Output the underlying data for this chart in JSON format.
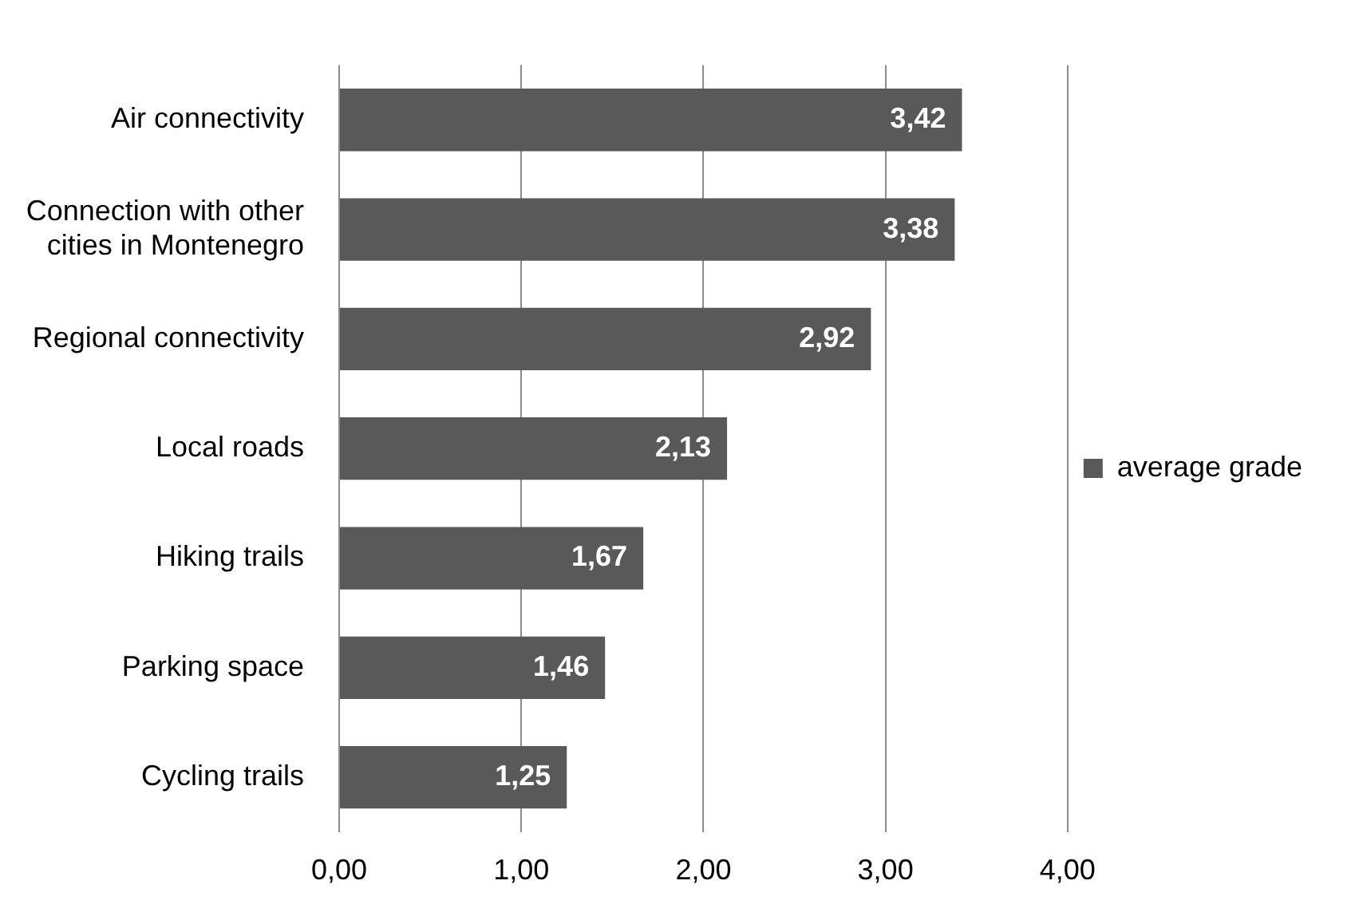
{
  "chart_data": {
    "type": "bar",
    "orientation": "horizontal",
    "categories": [
      "Air connectivity",
      "Connection with other cities in Montenegro",
      "Regional connectivity",
      "Local roads",
      "Hiking trails",
      "Parking space",
      "Cycling trails"
    ],
    "series": [
      {
        "name": "average grade",
        "color": "#595959",
        "values": [
          3.42,
          3.38,
          2.92,
          2.13,
          1.67,
          1.46,
          1.25
        ],
        "value_labels": [
          "3,42",
          "3,38",
          "2,92",
          "2,13",
          "1,67",
          "1,46",
          "1,25"
        ]
      }
    ],
    "xlim": [
      0,
      4
    ],
    "xticks": [
      {
        "value": 0,
        "label": "0,00"
      },
      {
        "value": 1,
        "label": "1,00"
      },
      {
        "value": 2,
        "label": "2,00"
      },
      {
        "value": 3,
        "label": "3,00"
      },
      {
        "value": 4,
        "label": "4,00"
      }
    ],
    "grid": "x",
    "legend": "right"
  }
}
